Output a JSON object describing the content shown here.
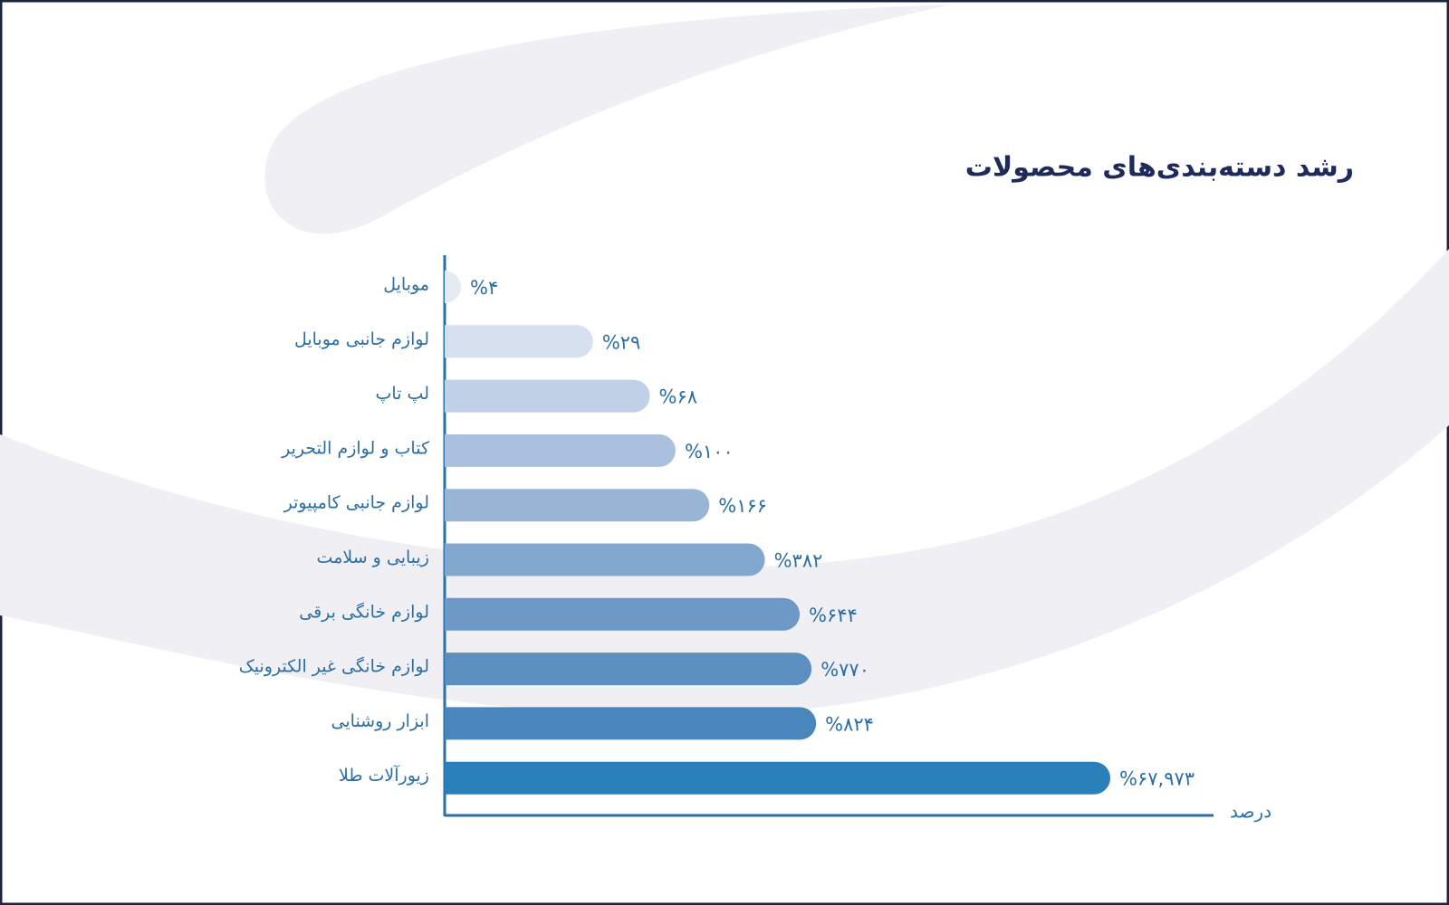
{
  "chart_data": {
    "type": "bar",
    "orientation": "horizontal",
    "scale": "log",
    "title": "رشد دسته‌بندی‌های محصولات",
    "x_label": "درصد",
    "categories": [
      "موبایل",
      "لوازم جانبی موبایل",
      "لپ تاپ",
      "کتاب و لوازم التحریر",
      "لوازم جانبی کامپیوتر",
      "زیبایی و سلامت",
      "لوازم خانگی برقی",
      "لوازم خانگی غیر الکترونیک",
      "ابزار روشنایی",
      "زیورآلات طلا"
    ],
    "values": [
      4,
      29,
      68,
      100,
      166,
      382,
      644,
      770,
      824,
      67973
    ],
    "value_labels": [
      "%۴",
      "%۲۹",
      "%۶۸",
      "%۱۰۰",
      "%۱۶۶",
      "%۳۸۲",
      "%۶۴۴",
      "%۷۷۰",
      "%۸۲۴",
      "%۶۷,۹۷۳"
    ],
    "colors": [
      "#e6ebf3",
      "#d6e0ee",
      "#c0d0e6",
      "#abc0de",
      "#98b5d6",
      "#83a8cf",
      "#6d99c6",
      "#5a8fc0",
      "#4886bc",
      "#2a80b8"
    ]
  }
}
